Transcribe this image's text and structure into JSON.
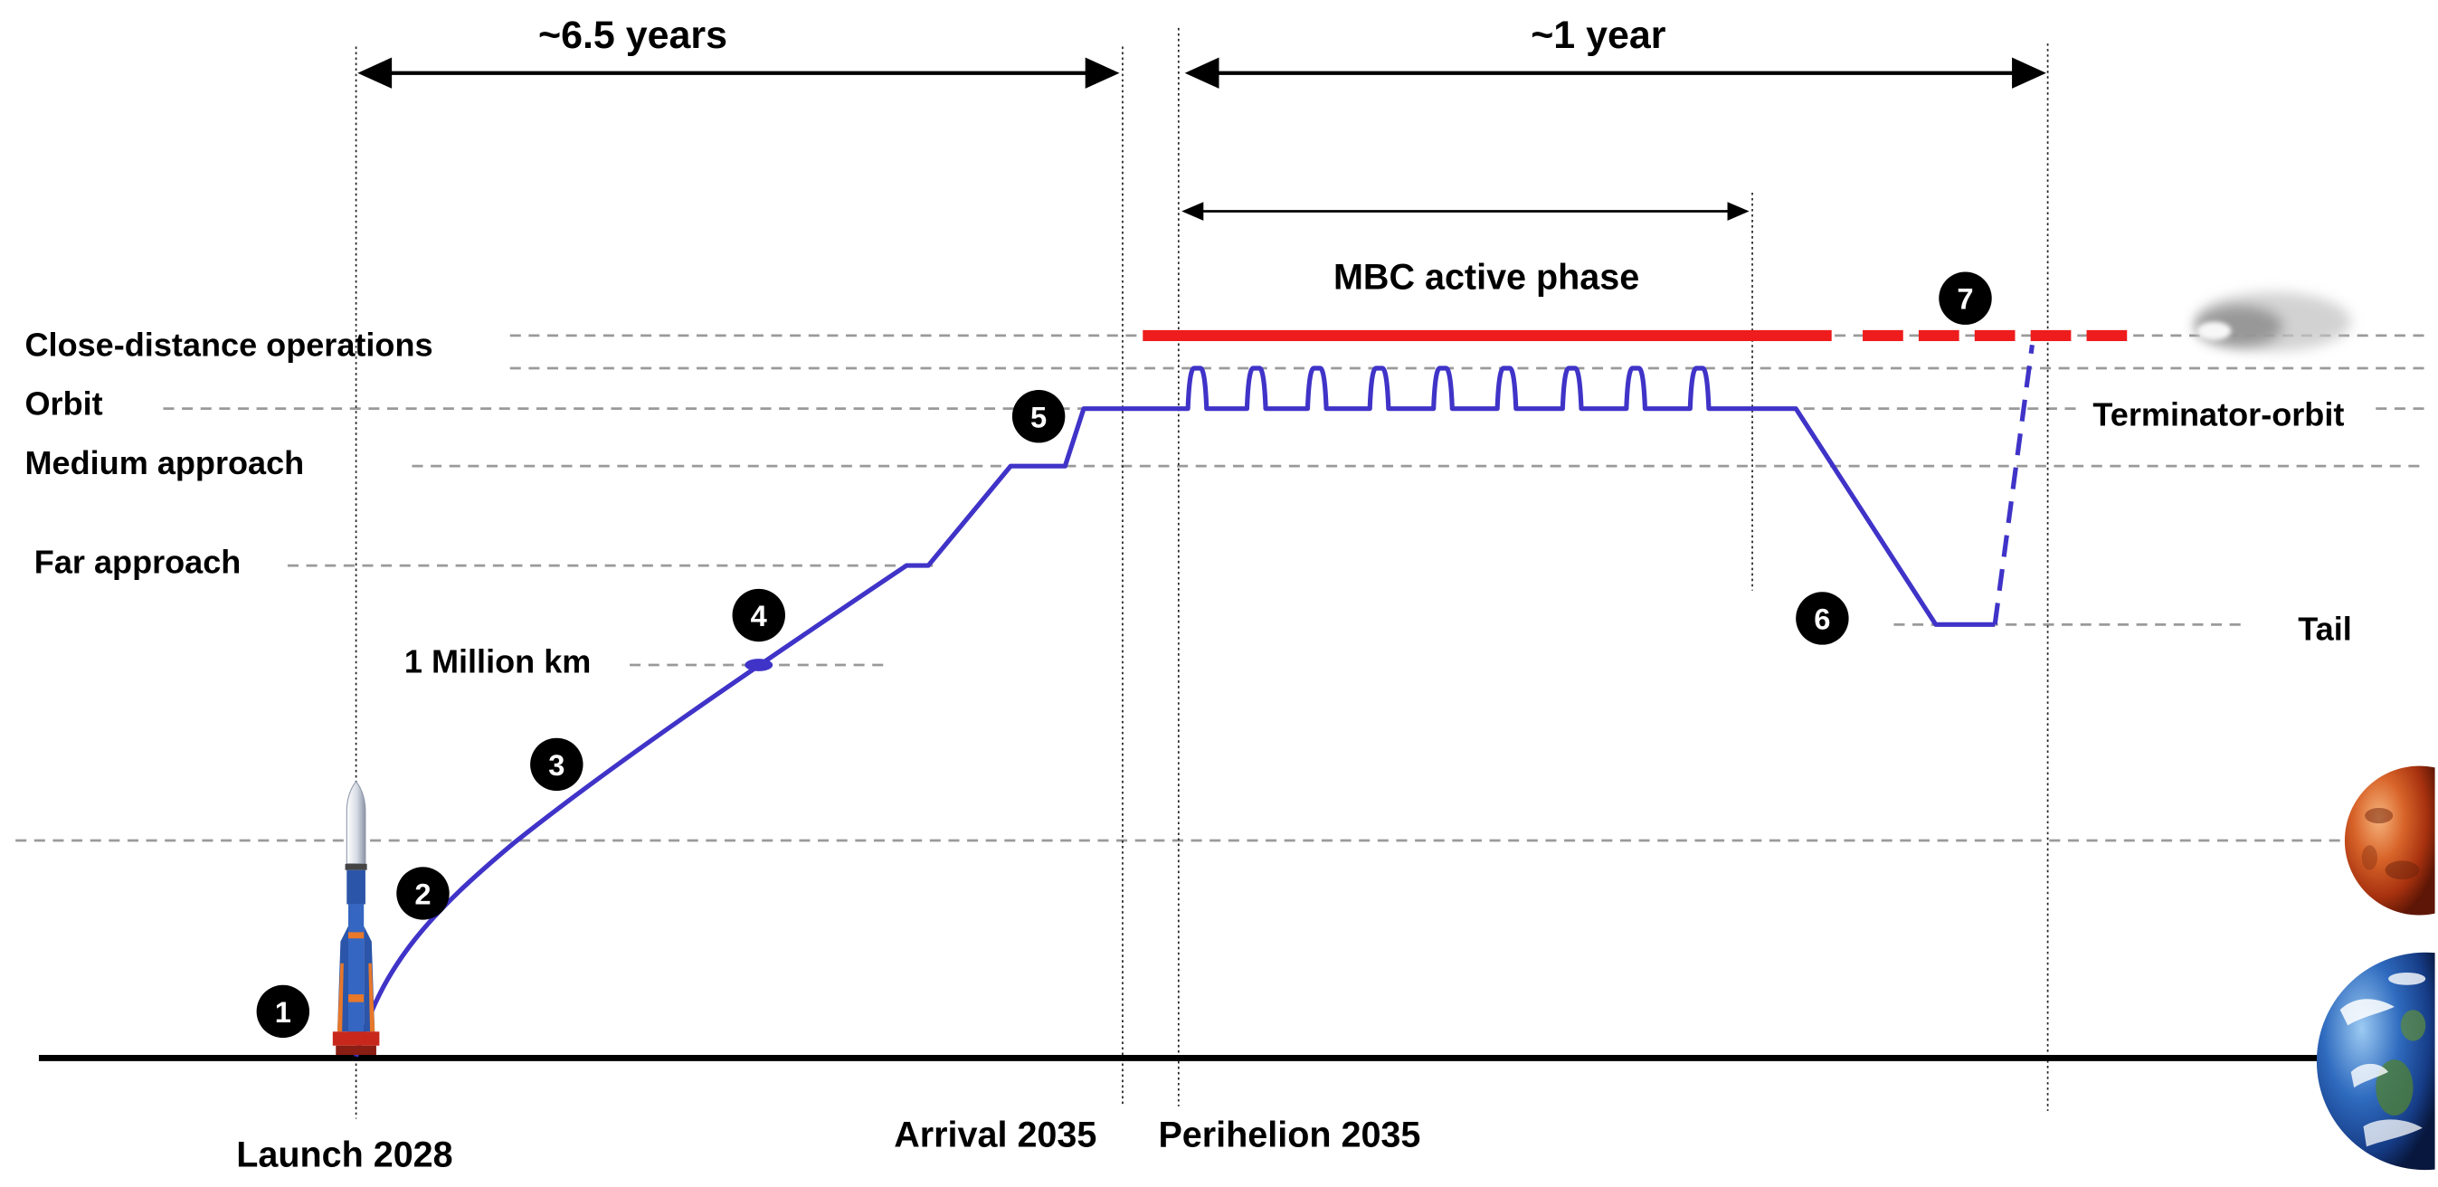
{
  "diagram": {
    "durations": {
      "to_arrival": "~6.5 years",
      "after_perihelion": "~1 year"
    },
    "active_phase": {
      "label": "MBC active phase",
      "color": "#ee1c1c"
    },
    "distance_levels": {
      "close": "Close-distance operations",
      "orbit": "Orbit",
      "medium": "Medium approach",
      "far": "Far approach",
      "million_km": "1 Million km"
    },
    "end_positions": {
      "terminator": "Terminator-orbit",
      "tail": "Tail"
    },
    "milestones": {
      "launch": "Launch 2028",
      "arrival": "Arrival 2035",
      "perihelion": "Perihelion 2035"
    },
    "steps": [
      "1",
      "2",
      "3",
      "4",
      "5",
      "6",
      "7"
    ],
    "trajectory_color": "#3f33c8",
    "axis_color": "#000000",
    "icons": {
      "launcher": "rocket-icon",
      "target": "comet-icon",
      "planet_upper": "mars-icon",
      "planet_lower": "earth-icon"
    }
  }
}
